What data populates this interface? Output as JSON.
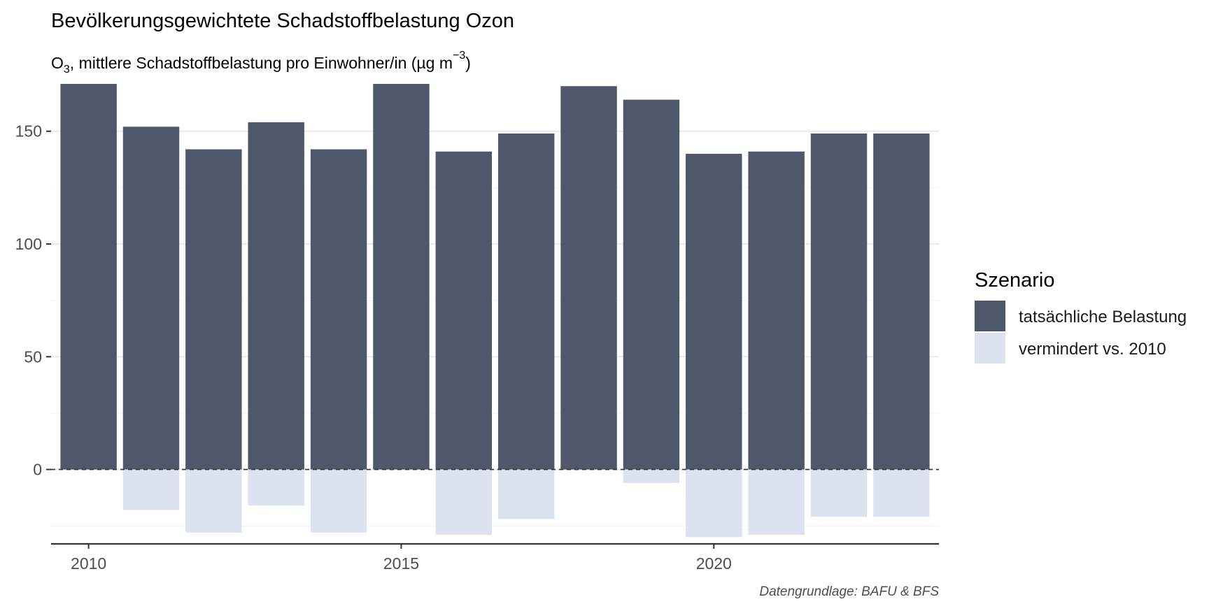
{
  "chart_data": {
    "type": "bar",
    "title": "Bevölkerungsgewichtete Schadstoffbelastung Ozon",
    "subtitle": {
      "o": "O",
      "sub": "3",
      "mid": ", mittlere Schadstoffbelastung pro Einwohner/in (µg m",
      "sup": "−3",
      "end": ")"
    },
    "caption": "Datengrundlage: BAFU & BFS",
    "x": [
      2010,
      2011,
      2012,
      2013,
      2014,
      2015,
      2016,
      2017,
      2018,
      2019,
      2020,
      2021,
      2022,
      2023
    ],
    "x_ticks": [
      2010,
      2015,
      2020
    ],
    "y_ticks": [
      0,
      50,
      100,
      150
    ],
    "ylim": [
      -33,
      171
    ],
    "xlim": [
      2009.4,
      2023.6
    ],
    "series": [
      {
        "name": "tatsächliche Belastung",
        "color": "#4f586b",
        "values": [
          171,
          152,
          142,
          154,
          142,
          171,
          141,
          149,
          170,
          164,
          140,
          141,
          149,
          149
        ]
      },
      {
        "name": "vermindert vs. 2010",
        "color": "#dde2f0",
        "values": [
          0,
          -18,
          -28,
          -16,
          -28,
          0,
          -29,
          -22,
          0,
          -6,
          -30,
          -29,
          -21,
          -21
        ]
      }
    ],
    "reference_line": {
      "y": 0,
      "style": "dashed"
    },
    "legend": {
      "title": "Szenario",
      "position": "right"
    },
    "grid": true
  }
}
